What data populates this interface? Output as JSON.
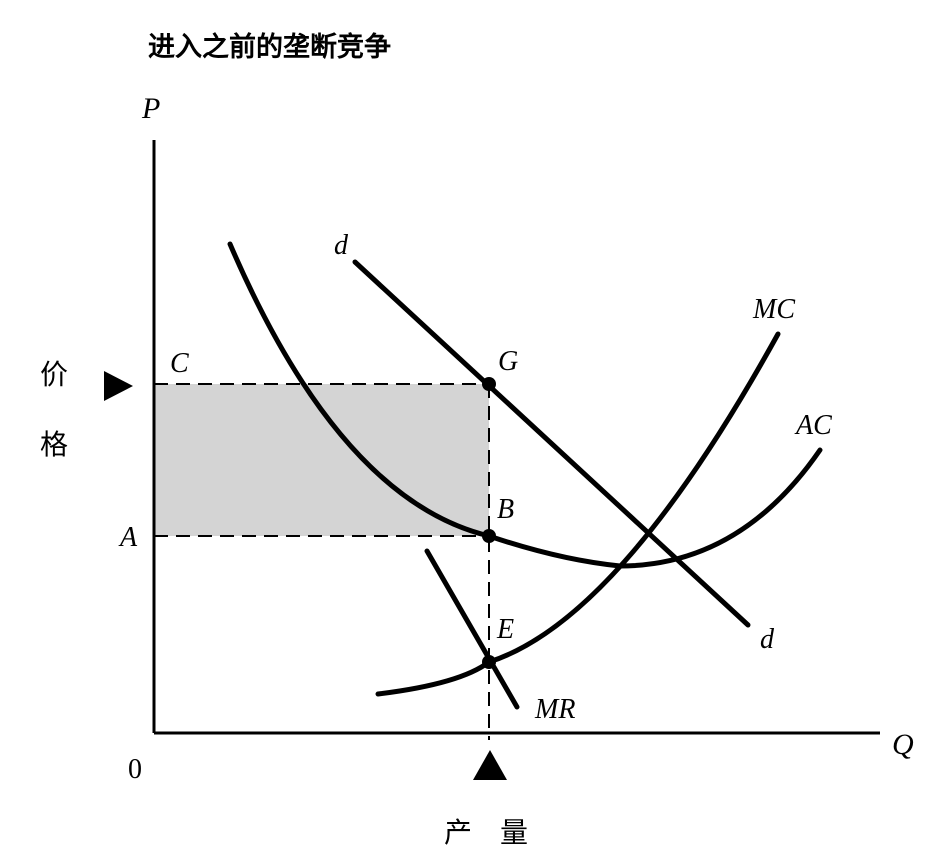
{
  "title": "进入之前的垄断竞争",
  "axes": {
    "y_label": "P",
    "x_label": "Q",
    "origin_label": "0",
    "y_title_line1": "价",
    "y_title_line2": "格",
    "x_title": "产　量"
  },
  "curves": {
    "demand_top": "d",
    "demand_bottom": "d",
    "mc": "MC",
    "ac": "AC",
    "mr": "MR"
  },
  "points": {
    "c": "C",
    "a": "A",
    "g": "G",
    "b": "B",
    "e": "E"
  },
  "colors": {
    "ink": "#000000",
    "profit_fill": "#d4d4d4"
  }
}
